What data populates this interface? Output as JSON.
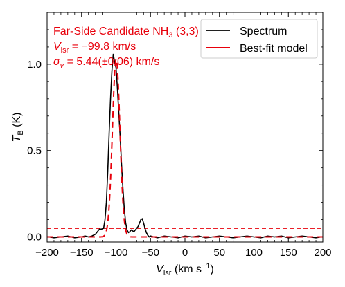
{
  "chart_data": {
    "type": "line",
    "xlabel_main": "V",
    "xlabel_sub": "lsr",
    "xlabel_unit_pre": " (km s",
    "xlabel_unit_sup": "−1",
    "xlabel_unit_post": ")",
    "ylabel_main": "T",
    "ylabel_sub": "B",
    "ylabel_unit": " (K)",
    "xlim": [
      -200,
      200
    ],
    "ylim": [
      -0.03,
      1.3
    ],
    "x_ticks": [
      -200,
      -150,
      -100,
      -50,
      0,
      50,
      100,
      150,
      200
    ],
    "x_tick_labels": [
      "−200",
      "−150",
      "−100",
      "−50",
      "0",
      "50",
      "100",
      "150",
      "200"
    ],
    "y_ticks": [
      0.0,
      0.5,
      1.0
    ],
    "y_tick_labels": [
      "0.0",
      "0.5",
      "1.0"
    ],
    "annotations": {
      "line1_main": "Far-Side Candidate NH",
      "line1_sub": "3",
      "line1_tail": " (3,3)",
      "line2_main": "V",
      "line2_sub": "lsr",
      "line2_tail": " = −99.8 km/s",
      "line3_main": "σ",
      "line3_sub": "v",
      "line3_tail": " = 5.44(±0.06) km/s"
    },
    "legend_position": "top-right",
    "threshold": 0.05,
    "series": [
      {
        "name": "Spectrum",
        "color": "#000000",
        "x": [
          -198,
          -190,
          -180,
          -170,
          -160,
          -150,
          -145,
          -140,
          -135,
          -130,
          -127,
          -124,
          -121,
          -118,
          -116,
          -114,
          -112,
          -110,
          -108,
          -106,
          -104,
          -102,
          -100,
          -98,
          -96,
          -94,
          -92,
          -90,
          -88,
          -86,
          -84,
          -82,
          -80,
          -78,
          -76,
          -74,
          -72,
          -70,
          -68,
          -66,
          -64,
          -62,
          -60,
          -58,
          -56,
          -54,
          -52,
          -50,
          -45,
          -40,
          -30,
          -20,
          -10,
          0,
          10,
          20,
          30,
          40,
          50,
          60,
          70,
          80,
          90,
          100,
          110,
          120,
          130,
          140,
          150,
          160,
          170,
          180,
          190,
          198
        ],
        "y": [
          0.0,
          -0.005,
          0.0,
          0.005,
          -0.005,
          0.0,
          0.005,
          0.0,
          0.005,
          0.015,
          0.03,
          0.045,
          0.045,
          0.05,
          0.1,
          0.2,
          0.38,
          0.6,
          0.8,
          0.96,
          1.06,
          1.01,
          0.98,
          0.86,
          0.72,
          0.58,
          0.42,
          0.28,
          0.16,
          0.08,
          0.04,
          0.025,
          0.03,
          0.04,
          0.035,
          0.03,
          0.04,
          0.05,
          0.06,
          0.08,
          0.1,
          0.105,
          0.08,
          0.05,
          0.025,
          0.01,
          0.0,
          0.005,
          0.0,
          -0.005,
          0.005,
          0.0,
          -0.005,
          0.005,
          0.0,
          0.005,
          -0.005,
          0.0,
          0.005,
          0.0,
          -0.005,
          0.0,
          0.005,
          0.0,
          -0.005,
          0.005,
          0.0,
          0.005,
          -0.005,
          0.0,
          0.005,
          0.0,
          -0.005,
          0.0
        ]
      },
      {
        "name": "Best-fit model",
        "color": "#e8000b",
        "model": "gaussian",
        "center": -99.8,
        "sigma": 5.44,
        "amplitude": 1.03
      }
    ]
  }
}
